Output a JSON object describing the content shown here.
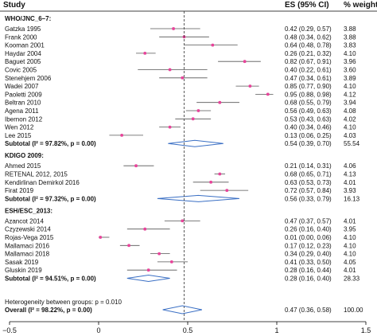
{
  "headers": {
    "study": "Study",
    "es": "ES (95% CI)",
    "weight": "% weight"
  },
  "hetero_note": "Heterogeneity between groups: p = 0.010",
  "overall": {
    "label": "Overall (I² = 98.22%, p = 0.00)",
    "es": 0.47,
    "lo": 0.36,
    "hi": 0.58,
    "es_text": "0.47 (0.36, 0.58)",
    "weight": "100.00"
  },
  "chart_data": {
    "type": "forest",
    "reference_line": 0.48,
    "x_ticks": [
      "−0.5",
      "0",
      "0.5",
      "1",
      "1.5"
    ],
    "x_tick_values": [
      -0.5,
      0,
      0.5,
      1,
      1.5
    ],
    "xlim": [
      -0.5,
      1.5
    ],
    "marker_color": "#e8439a",
    "diamond_color": "#3a6fc4",
    "groups": [
      {
        "name": "WHO/JNC_6–7:",
        "studies": [
          {
            "label": "Gatzka 1995",
            "es": 0.42,
            "lo": 0.29,
            "hi": 0.57,
            "es_text": "0.42 (0.29, 0.57)",
            "weight": "3.88"
          },
          {
            "label": "Frank 2000",
            "es": 0.48,
            "lo": 0.34,
            "hi": 0.62,
            "es_text": "0.48 (0.34, 0.62)",
            "weight": "3.88"
          },
          {
            "label": "Kooman 2001",
            "es": 0.64,
            "lo": 0.48,
            "hi": 0.78,
            "es_text": "0.64 (0.48, 0.78)",
            "weight": "3.83"
          },
          {
            "label": "Haydar 2004",
            "es": 0.26,
            "lo": 0.21,
            "hi": 0.32,
            "es_text": "0.26 (0.21, 0.32)",
            "weight": "4.10"
          },
          {
            "label": "Baguet 2005",
            "es": 0.82,
            "lo": 0.67,
            "hi": 0.91,
            "es_text": "0.82 (0.67, 0.91)",
            "weight": "3.96"
          },
          {
            "label": "Covic 2005",
            "es": 0.4,
            "lo": 0.22,
            "hi": 0.61,
            "es_text": "0.40 (0.22, 0.61)",
            "weight": "3.60"
          },
          {
            "label": "Stenehjem 2006",
            "es": 0.47,
            "lo": 0.34,
            "hi": 0.61,
            "es_text": "0.47 (0.34, 0.61)",
            "weight": "3.89"
          },
          {
            "label": "Wadei 2007",
            "es": 0.85,
            "lo": 0.77,
            "hi": 0.9,
            "es_text": "0.85 (0.77, 0.90)",
            "weight": "4.10"
          },
          {
            "label": "Paoletti 2009",
            "es": 0.95,
            "lo": 0.88,
            "hi": 0.98,
            "es_text": "0.95 (0.88, 0.98)",
            "weight": "4.12"
          },
          {
            "label": "Beltran 2010",
            "es": 0.68,
            "lo": 0.55,
            "hi": 0.79,
            "es_text": "0.68 (0.55, 0.79)",
            "weight": "3.94"
          },
          {
            "label": "Agena 2011",
            "es": 0.56,
            "lo": 0.49,
            "hi": 0.63,
            "es_text": "0.56 (0.49, 0.63)",
            "weight": "4.08"
          },
          {
            "label": "Ibernon 2012",
            "es": 0.53,
            "lo": 0.43,
            "hi": 0.63,
            "es_text": "0.53 (0.43, 0.63)",
            "weight": "4.02"
          },
          {
            "label": "Wen 2012",
            "es": 0.4,
            "lo": 0.34,
            "hi": 0.46,
            "es_text": "0.40 (0.34, 0.46)",
            "weight": "4.10"
          },
          {
            "label": "Lee 2015",
            "es": 0.13,
            "lo": 0.06,
            "hi": 0.25,
            "es_text": "0.13 (0.06, 0.25)",
            "weight": "4.03"
          }
        ],
        "subtotal": {
          "label": "Subtotal (I² = 97.82%, p = 0.00)",
          "es": 0.54,
          "lo": 0.39,
          "hi": 0.7,
          "es_text": "0.54 (0.39, 0.70)",
          "weight": "55.54"
        }
      },
      {
        "name": "KDIGO 2009:",
        "studies": [
          {
            "label": "Ahmed 2015",
            "es": 0.21,
            "lo": 0.14,
            "hi": 0.31,
            "es_text": "0.21 (0.14, 0.31)",
            "weight": "4.06"
          },
          {
            "label": "RETENAL 2012, 2015",
            "es": 0.68,
            "lo": 0.65,
            "hi": 0.71,
            "es_text": "0.68 (0.65, 0.71)",
            "weight": "4.13"
          },
          {
            "label": "Kendirlinan Demirkol 2016",
            "es": 0.63,
            "lo": 0.53,
            "hi": 0.73,
            "es_text": "0.63 (0.53, 0.73)",
            "weight": "4.01"
          },
          {
            "label": "Firat 2019",
            "es": 0.72,
            "lo": 0.57,
            "hi": 0.84,
            "es_text": "0.72 (0.57, 0.84)",
            "weight": "3.93"
          }
        ],
        "subtotal": {
          "label": "Subtotal (I² = 97.32%, p = 0.00)",
          "es": 0.56,
          "lo": 0.33,
          "hi": 0.79,
          "es_text": "0.56 (0.33, 0.79)",
          "weight": "16.13"
        }
      },
      {
        "name": "ESH/ESC_2013:",
        "studies": [
          {
            "label": "Azancot 2014",
            "es": 0.47,
            "lo": 0.37,
            "hi": 0.57,
            "es_text": "0.47 (0.37, 0.57)",
            "weight": "4.01"
          },
          {
            "label": "Czyzewski 2014",
            "es": 0.26,
            "lo": 0.16,
            "hi": 0.4,
            "es_text": "0.26 (0.16, 0.40)",
            "weight": "3.95"
          },
          {
            "label": "Rojas-Vega 2015",
            "es": 0.01,
            "lo": 0.0,
            "hi": 0.06,
            "es_text": "0.01 (0.00, 0.06)",
            "weight": "4.10"
          },
          {
            "label": "Mallamaci 2016",
            "es": 0.17,
            "lo": 0.12,
            "hi": 0.23,
            "es_text": "0.17 (0.12, 0.23)",
            "weight": "4.10"
          },
          {
            "label": "Mallamaci 2018",
            "es": 0.34,
            "lo": 0.29,
            "hi": 0.4,
            "es_text": "0.34 (0.29, 0.40)",
            "weight": "4.10"
          },
          {
            "label": "Sasak 2019",
            "es": 0.41,
            "lo": 0.33,
            "hi": 0.5,
            "es_text": "0.41 (0.33, 0.50)",
            "weight": "4.05"
          },
          {
            "label": "Gluskin 2019",
            "es": 0.28,
            "lo": 0.16,
            "hi": 0.44,
            "es_text": "0.28 (0.16, 0.44)",
            "weight": "4.01"
          }
        ],
        "subtotal": {
          "label": "Subtotal (I² = 94.51%, p = 0.00)",
          "es": 0.28,
          "lo": 0.16,
          "hi": 0.4,
          "es_text": "0.28 (0.16, 0.40)",
          "weight": "28.33"
        }
      }
    ]
  }
}
